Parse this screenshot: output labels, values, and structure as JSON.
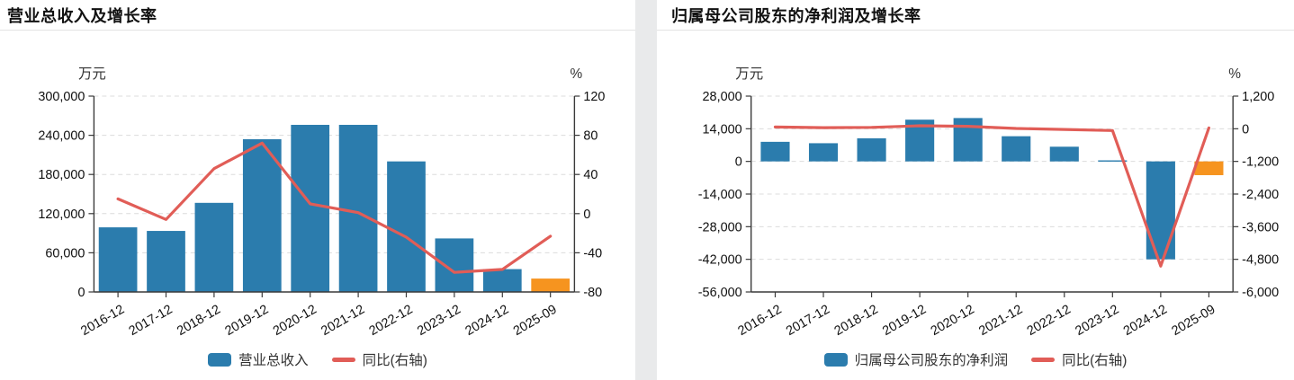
{
  "styles": {
    "background": "#ffffff",
    "divider_color": "#e9eaeb",
    "title_color": "#111111",
    "title_rule_color": "#e3e3e3",
    "grid_color": "#dcdcdc",
    "axis_color": "#3a3a3a",
    "tick_text_color": "#111111",
    "axis_unit_color": "#333333",
    "legend_text_color": "#333333",
    "bar_blue": "#2b7cad",
    "bar_orange": "#f6941f",
    "line_red": "#e15d57"
  },
  "chart_data": [
    {
      "type": "bar",
      "title": "营业总收入及增长率",
      "left_axis_label": "万元",
      "right_axis_label": "%",
      "categories": [
        "2016-12",
        "2017-12",
        "2018-12",
        "2019-12",
        "2020-12",
        "2021-12",
        "2022-12",
        "2023-12",
        "2024-12",
        "2025-09"
      ],
      "series": [
        {
          "name": "营业总收入",
          "type": "bar",
          "axis": "left",
          "color": "#2b7cad",
          "last_color": "#f6941f",
          "values": [
            99000,
            93500,
            136500,
            234000,
            256000,
            256000,
            200000,
            82000,
            35000,
            20500
          ]
        },
        {
          "name": "同比(右轴)",
          "type": "line",
          "axis": "right",
          "color": "#e15d57",
          "values": [
            15,
            -6,
            46,
            72,
            10,
            1,
            -24,
            -60,
            -57,
            -23
          ]
        }
      ],
      "left_axis": {
        "min": 0,
        "max": 300000,
        "ticks": [
          "300,000",
          "240,000",
          "180,000",
          "120,000",
          "60,000",
          "0"
        ]
      },
      "right_axis": {
        "min": -80,
        "max": 120,
        "ticks": [
          "120",
          "80",
          "40",
          "0",
          "-40",
          "-80"
        ]
      },
      "legend_position": "bottom",
      "grid": "dashed",
      "bar_width_ratio": 0.8
    },
    {
      "type": "bar",
      "title": "归属母公司股东的净利润及增长率",
      "left_axis_label": "万元",
      "right_axis_label": "%",
      "categories": [
        "2016-12",
        "2017-12",
        "2018-12",
        "2019-12",
        "2020-12",
        "2021-12",
        "2022-12",
        "2023-12",
        "2024-12",
        "2025-09"
      ],
      "series": [
        {
          "name": "归属母公司股东的净利润",
          "type": "bar",
          "axis": "left",
          "color": "#2b7cad",
          "last_color": "#f6941f",
          "values": [
            8400,
            7800,
            9900,
            17900,
            18600,
            10800,
            6300,
            450,
            -42000,
            -5900
          ]
        },
        {
          "name": "同比(右轴)",
          "type": "line",
          "axis": "right",
          "color": "#e15d57",
          "values": [
            65,
            40,
            50,
            110,
            90,
            10,
            -25,
            -65,
            -5050,
            30
          ]
        }
      ],
      "left_axis": {
        "min": -56000,
        "max": 28000,
        "ticks": [
          "28,000",
          "14,000",
          "0",
          "-14,000",
          "-28,000",
          "-42,000",
          "-56,000"
        ]
      },
      "right_axis": {
        "min": -6000,
        "max": 1200,
        "ticks": [
          "1,200",
          "0",
          "-1,200",
          "-2,400",
          "-3,600",
          "-4,800",
          "-6,000"
        ]
      },
      "legend_position": "bottom",
      "grid": "dashed",
      "bar_width_ratio": 0.6
    }
  ]
}
